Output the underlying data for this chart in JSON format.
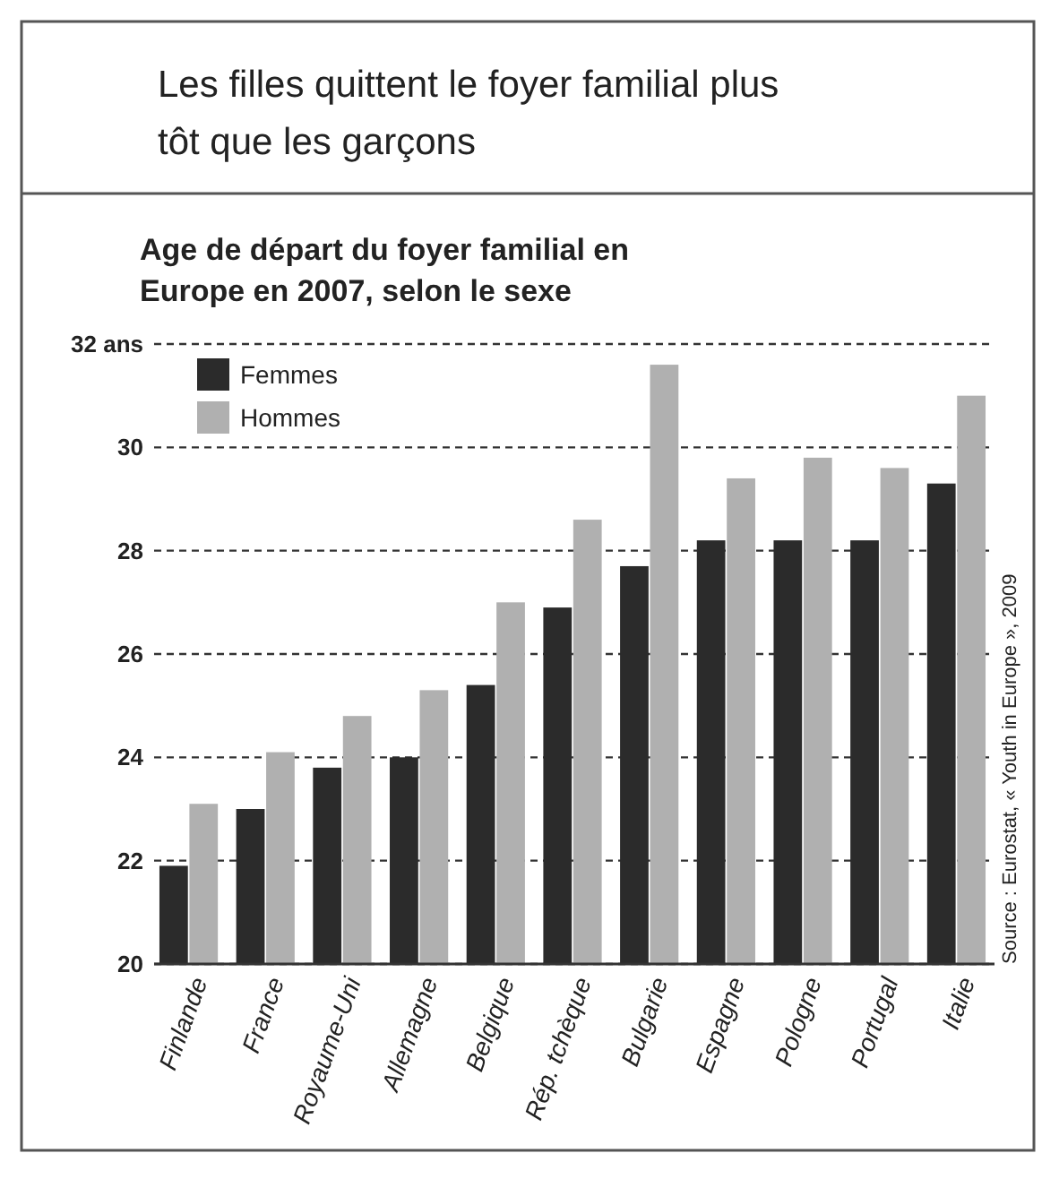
{
  "chart_data": {
    "type": "bar",
    "title": "Les filles quittent le foyer familial plus tôt que les garçons",
    "subtitle": "Age de départ du foyer familial en Europe en 2007, selon le sexe",
    "categories": [
      "Finlande",
      "France",
      "Royaume-Uni",
      "Allemagne",
      "Belgique",
      "Rép. tchèque",
      "Bulgarie",
      "Espagne",
      "Pologne",
      "Portugal",
      "Italie"
    ],
    "series": [
      {
        "name": "Femmes",
        "color": "#2b2b2b",
        "values": [
          21.9,
          23.0,
          23.8,
          24.0,
          25.4,
          26.9,
          27.7,
          28.2,
          28.2,
          28.2,
          29.3
        ]
      },
      {
        "name": "Hommes",
        "color": "#b0b0b0",
        "values": [
          23.1,
          24.1,
          24.8,
          25.3,
          27.0,
          28.6,
          31.6,
          29.4,
          29.8,
          29.6,
          31.0
        ]
      }
    ],
    "ylim": [
      20,
      32
    ],
    "yticks": [
      20,
      22,
      24,
      26,
      28,
      30,
      {
        "value": 32,
        "label": "32 ans"
      }
    ],
    "grid": "y",
    "legend": "top left",
    "annotations": [
      "Source : Eurostat, « Youth in Europe », 2009"
    ]
  }
}
